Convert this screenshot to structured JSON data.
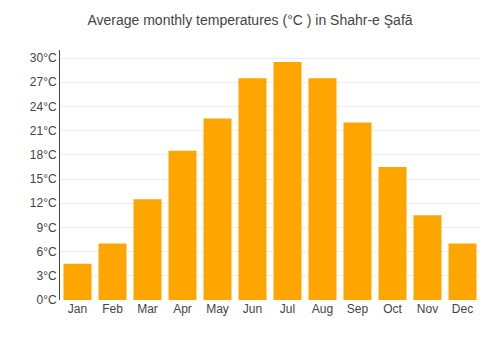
{
  "chart_data": {
    "type": "bar",
    "title": "Average monthly temperatures (°C ) in Shahr-e Şafā",
    "categories": [
      "Jan",
      "Feb",
      "Mar",
      "Apr",
      "May",
      "Jun",
      "Jul",
      "Aug",
      "Sep",
      "Oct",
      "Nov",
      "Dec"
    ],
    "values": [
      4.5,
      7.0,
      12.5,
      18.5,
      22.5,
      27.5,
      29.5,
      27.5,
      22.0,
      16.5,
      10.5,
      7.0
    ],
    "color": "#FFA500",
    "ylim": [
      0,
      31
    ],
    "yticks": [
      {
        "value": 0,
        "label": "0°C"
      },
      {
        "value": 3,
        "label": "3°C"
      },
      {
        "value": 6,
        "label": "6°C"
      },
      {
        "value": 9,
        "label": "9°C"
      },
      {
        "value": 12,
        "label": "12°C"
      },
      {
        "value": 15,
        "label": "15°C"
      },
      {
        "value": 18,
        "label": "18°C"
      },
      {
        "value": 21,
        "label": "21°C"
      },
      {
        "value": 24,
        "label": "24°C"
      },
      {
        "value": 27,
        "label": "27°C"
      },
      {
        "value": 30,
        "label": "30°C"
      }
    ],
    "grid": true
  }
}
